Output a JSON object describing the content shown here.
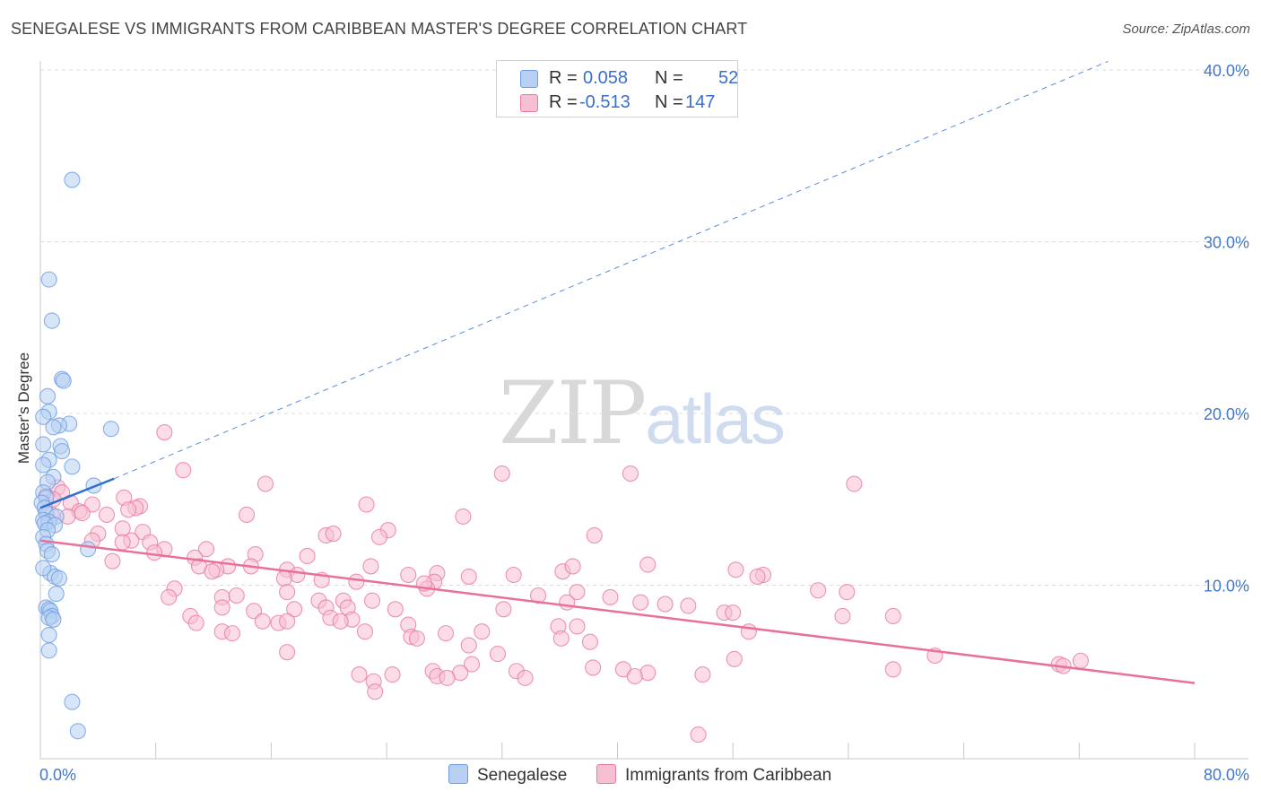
{
  "title": "SENEGALESE VS IMMIGRANTS FROM CARIBBEAN MASTER'S DEGREE CORRELATION CHART",
  "source": "Source: ZipAtlas.com",
  "watermark": {
    "zip": "ZIP",
    "atlas": "atlas"
  },
  "colors": {
    "blue": "#6f9de0",
    "blue_fill": "#b6cff3",
    "pink": "#e87aa0",
    "pink_fill": "#f7bfd3",
    "blue_line": "#2f6fd1",
    "pink_line": "#e8709a"
  },
  "legend": [
    {
      "r_label": "R =",
      "r_value": "0.058",
      "n_label": "N =",
      "n_value": "52"
    },
    {
      "r_label": "R =",
      "r_value": "-0.513",
      "n_label": "N =",
      "n_value": "147"
    }
  ],
  "chart_data": {
    "type": "scatter",
    "title": "SENEGALESE VS IMMIGRANTS FROM CARIBBEAN MASTER'S DEGREE CORRELATION CHART",
    "ylabel": "Master's Degree",
    "xlabel": "",
    "xlim": [
      0,
      80
    ],
    "ylim": [
      0,
      40
    ],
    "x_tick_labels": [
      "0.0%",
      "80.0%"
    ],
    "y_ticks": [
      10,
      20,
      30,
      40
    ],
    "y_tick_labels": [
      "10.0%",
      "20.0%",
      "30.0%",
      "40.0%"
    ],
    "grid": "horizontal dashed",
    "legend_position": "top-center",
    "series": [
      {
        "name": "Senegalese",
        "color": "#6f9de0",
        "trend": {
          "x0": 0,
          "y0": 14.5,
          "x1": 5.1,
          "y1": 16.2,
          "dashed_to_x": 74,
          "dashed_to_y": 40.5
        },
        "points": [
          [
            2.2,
            33.6
          ],
          [
            0.6,
            27.8
          ],
          [
            0.8,
            25.4
          ],
          [
            1.5,
            22.0
          ],
          [
            1.6,
            21.9
          ],
          [
            0.5,
            21.0
          ],
          [
            0.6,
            20.1
          ],
          [
            0.2,
            19.8
          ],
          [
            2.0,
            19.4
          ],
          [
            1.3,
            19.3
          ],
          [
            0.9,
            19.2
          ],
          [
            4.9,
            19.1
          ],
          [
            0.2,
            18.2
          ],
          [
            1.4,
            18.1
          ],
          [
            1.5,
            17.8
          ],
          [
            0.6,
            17.3
          ],
          [
            0.2,
            17.0
          ],
          [
            2.2,
            16.9
          ],
          [
            0.9,
            16.3
          ],
          [
            0.5,
            16.0
          ],
          [
            3.7,
            15.8
          ],
          [
            0.2,
            15.4
          ],
          [
            0.4,
            15.1
          ],
          [
            0.1,
            14.8
          ],
          [
            0.3,
            14.5
          ],
          [
            0.4,
            14.2
          ],
          [
            1.1,
            14.0
          ],
          [
            0.2,
            13.8
          ],
          [
            0.6,
            13.7
          ],
          [
            0.3,
            13.6
          ],
          [
            1.0,
            13.5
          ],
          [
            0.5,
            13.2
          ],
          [
            0.2,
            12.8
          ],
          [
            0.4,
            12.4
          ],
          [
            3.3,
            12.1
          ],
          [
            0.5,
            12.0
          ],
          [
            0.8,
            11.8
          ],
          [
            0.7,
            10.7
          ],
          [
            1.0,
            10.5
          ],
          [
            1.3,
            10.4
          ],
          [
            1.1,
            9.5
          ],
          [
            0.4,
            8.7
          ],
          [
            0.6,
            8.6
          ],
          [
            0.7,
            8.5
          ],
          [
            0.8,
            8.2
          ],
          [
            0.6,
            8.1
          ],
          [
            0.9,
            8.0
          ],
          [
            0.6,
            7.1
          ],
          [
            0.6,
            6.2
          ],
          [
            2.2,
            3.2
          ],
          [
            2.6,
            1.5
          ],
          [
            0.2,
            11.0
          ]
        ]
      },
      {
        "name": "Immigrants from Caribbean",
        "color": "#e87aa0",
        "trend": {
          "x0": 0,
          "y0": 12.6,
          "x1": 80,
          "y1": 4.3
        },
        "points": [
          [
            8.6,
            18.9
          ],
          [
            9.9,
            16.7
          ],
          [
            32.0,
            16.5
          ],
          [
            40.9,
            16.5
          ],
          [
            56.4,
            15.9
          ],
          [
            15.6,
            15.9
          ],
          [
            1.2,
            15.7
          ],
          [
            0.4,
            15.2
          ],
          [
            1.5,
            15.4
          ],
          [
            0.9,
            15.0
          ],
          [
            5.8,
            15.1
          ],
          [
            2.1,
            14.8
          ],
          [
            3.6,
            14.7
          ],
          [
            6.9,
            14.6
          ],
          [
            22.6,
            14.7
          ],
          [
            6.6,
            14.5
          ],
          [
            0.8,
            14.1
          ],
          [
            4.6,
            14.1
          ],
          [
            2.7,
            14.3
          ],
          [
            14.3,
            14.1
          ],
          [
            1.9,
            14.0
          ],
          [
            2.9,
            14.2
          ],
          [
            29.3,
            14.0
          ],
          [
            6.1,
            14.4
          ],
          [
            5.7,
            13.3
          ],
          [
            7.1,
            13.1
          ],
          [
            24.1,
            13.2
          ],
          [
            19.8,
            12.9
          ],
          [
            20.3,
            13.0
          ],
          [
            23.5,
            12.8
          ],
          [
            38.4,
            12.9
          ],
          [
            4.0,
            13.0
          ],
          [
            3.6,
            12.6
          ],
          [
            6.3,
            12.6
          ],
          [
            5.7,
            12.5
          ],
          [
            7.6,
            12.5
          ],
          [
            8.6,
            12.1
          ],
          [
            11.5,
            12.1
          ],
          [
            7.9,
            11.9
          ],
          [
            10.7,
            11.6
          ],
          [
            14.9,
            11.8
          ],
          [
            18.5,
            11.7
          ],
          [
            5.0,
            11.4
          ],
          [
            11.0,
            11.1
          ],
          [
            13.0,
            11.1
          ],
          [
            14.6,
            11.1
          ],
          [
            12.2,
            10.9
          ],
          [
            11.9,
            10.8
          ],
          [
            17.1,
            10.9
          ],
          [
            22.9,
            11.1
          ],
          [
            29.7,
            10.5
          ],
          [
            25.5,
            10.6
          ],
          [
            27.5,
            10.7
          ],
          [
            32.8,
            10.6
          ],
          [
            36.2,
            10.8
          ],
          [
            36.9,
            11.1
          ],
          [
            42.1,
            11.2
          ],
          [
            48.2,
            10.9
          ],
          [
            50.1,
            10.6
          ],
          [
            49.7,
            10.5
          ],
          [
            17.8,
            10.6
          ],
          [
            16.9,
            10.4
          ],
          [
            19.5,
            10.3
          ],
          [
            21.9,
            10.2
          ],
          [
            27.3,
            10.2
          ],
          [
            26.8,
            9.8
          ],
          [
            26.6,
            10.1
          ],
          [
            9.3,
            9.8
          ],
          [
            8.9,
            9.3
          ],
          [
            12.6,
            9.3
          ],
          [
            13.6,
            9.4
          ],
          [
            17.1,
            9.6
          ],
          [
            19.3,
            9.1
          ],
          [
            21.0,
            9.1
          ],
          [
            23.0,
            9.1
          ],
          [
            34.5,
            9.4
          ],
          [
            37.2,
            9.6
          ],
          [
            39.5,
            9.3
          ],
          [
            41.6,
            9.0
          ],
          [
            43.3,
            8.9
          ],
          [
            44.9,
            8.8
          ],
          [
            53.9,
            9.7
          ],
          [
            55.9,
            9.6
          ],
          [
            12.6,
            8.7
          ],
          [
            14.8,
            8.5
          ],
          [
            17.6,
            8.6
          ],
          [
            19.8,
            8.7
          ],
          [
            21.3,
            8.7
          ],
          [
            24.6,
            8.6
          ],
          [
            32.1,
            8.6
          ],
          [
            36.5,
            9.0
          ],
          [
            47.4,
            8.4
          ],
          [
            48.0,
            8.4
          ],
          [
            55.6,
            8.2
          ],
          [
            59.1,
            8.2
          ],
          [
            10.4,
            8.2
          ],
          [
            10.8,
            7.8
          ],
          [
            15.4,
            7.9
          ],
          [
            16.5,
            7.8
          ],
          [
            17.1,
            7.9
          ],
          [
            20.1,
            8.1
          ],
          [
            21.6,
            8.0
          ],
          [
            20.8,
            7.9
          ],
          [
            25.5,
            7.7
          ],
          [
            35.9,
            7.6
          ],
          [
            37.2,
            7.6
          ],
          [
            49.1,
            7.3
          ],
          [
            12.6,
            7.3
          ],
          [
            13.3,
            7.2
          ],
          [
            22.5,
            7.3
          ],
          [
            25.7,
            7.0
          ],
          [
            26.1,
            6.9
          ],
          [
            28.1,
            7.2
          ],
          [
            30.6,
            7.3
          ],
          [
            36.1,
            6.9
          ],
          [
            38.1,
            6.7
          ],
          [
            29.7,
            6.5
          ],
          [
            17.1,
            6.1
          ],
          [
            31.7,
            6.0
          ],
          [
            48.1,
            5.7
          ],
          [
            62.0,
            5.9
          ],
          [
            72.1,
            5.6
          ],
          [
            70.6,
            5.4
          ],
          [
            70.9,
            5.3
          ],
          [
            59.1,
            5.1
          ],
          [
            29.9,
            5.4
          ],
          [
            40.4,
            5.1
          ],
          [
            38.3,
            5.2
          ],
          [
            42.1,
            4.9
          ],
          [
            41.2,
            4.7
          ],
          [
            33.0,
            5.0
          ],
          [
            27.2,
            5.0
          ],
          [
            24.4,
            4.8
          ],
          [
            22.1,
            4.8
          ],
          [
            29.1,
            4.9
          ],
          [
            27.5,
            4.7
          ],
          [
            45.9,
            4.8
          ],
          [
            28.2,
            4.6
          ],
          [
            33.6,
            4.6
          ],
          [
            23.1,
            4.4
          ],
          [
            23.2,
            3.8
          ],
          [
            45.6,
            1.3
          ]
        ]
      }
    ]
  }
}
